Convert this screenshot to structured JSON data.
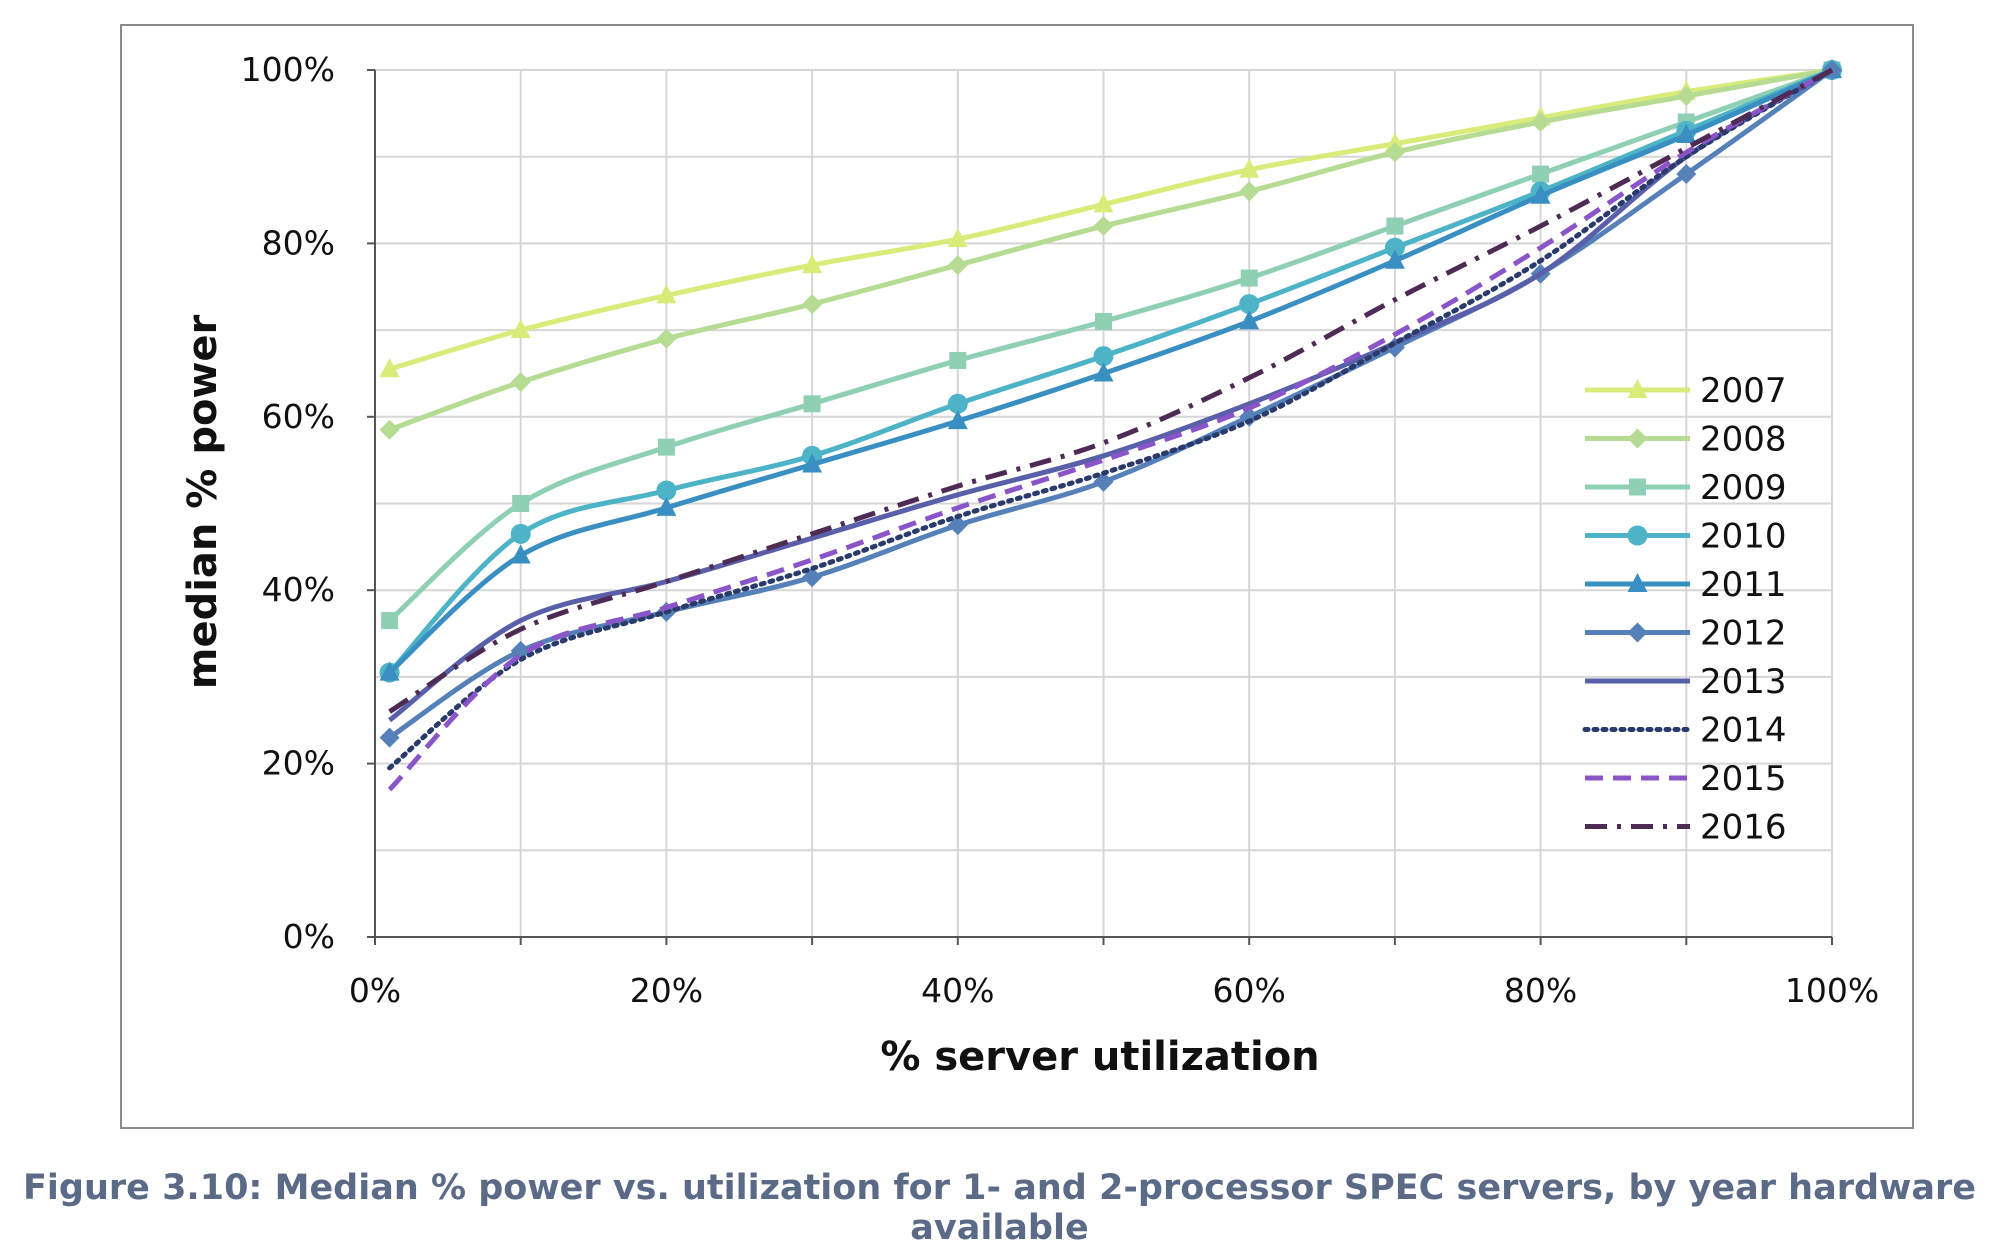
{
  "chart_data": {
    "type": "line",
    "xlabel": "% server utilization",
    "ylabel": "median % power",
    "x": [
      1,
      10,
      20,
      30,
      40,
      50,
      60,
      70,
      80,
      90,
      100
    ],
    "xlim": [
      0,
      100
    ],
    "ylim": [
      0,
      100
    ],
    "xticks": [
      0,
      20,
      40,
      60,
      80,
      100
    ],
    "xtick_labels": [
      "0%",
      "20%",
      "40%",
      "60%",
      "80%",
      "100%"
    ],
    "yticks": [
      0,
      20,
      40,
      60,
      80,
      100
    ],
    "ytick_labels": [
      "0%",
      "20%",
      "40%",
      "60%",
      "80%",
      "100%"
    ],
    "grid": true,
    "legend_position": "right",
    "series": [
      {
        "name": "2007",
        "color": "#d9ec7a",
        "marker": "triangle",
        "dash": "solid",
        "values": [
          65.5,
          70,
          74,
          77.5,
          80.5,
          84.5,
          88.5,
          91.5,
          94.5,
          97.5,
          100
        ]
      },
      {
        "name": "2008",
        "color": "#b6dc93",
        "marker": "diamond",
        "dash": "solid",
        "values": [
          58.5,
          64,
          69,
          73,
          77.5,
          82,
          86,
          90.5,
          94,
          97,
          100
        ]
      },
      {
        "name": "2009",
        "color": "#8fd0b5",
        "marker": "square",
        "dash": "solid",
        "values": [
          36.5,
          50,
          56.5,
          61.5,
          66.5,
          71,
          76,
          82,
          88,
          94,
          100
        ]
      },
      {
        "name": "2010",
        "color": "#4db3c7",
        "marker": "circle",
        "dash": "solid",
        "values": [
          30.5,
          46.5,
          51.5,
          55.5,
          61.5,
          67,
          73,
          79.5,
          86,
          93,
          100
        ]
      },
      {
        "name": "2011",
        "color": "#3a8fc2",
        "marker": "triangle",
        "dash": "solid",
        "values": [
          30.5,
          44,
          49.5,
          54.5,
          59.5,
          65,
          71,
          78,
          85.5,
          92.5,
          100
        ]
      },
      {
        "name": "2012",
        "color": "#5580b8",
        "marker": "diamond",
        "dash": "solid",
        "values": [
          23,
          33,
          37.5,
          41.5,
          47.5,
          52.5,
          60,
          68,
          76.5,
          88,
          100
        ]
      },
      {
        "name": "2013",
        "color": "#5a5faa",
        "marker": "none",
        "dash": "solid",
        "values": [
          25,
          36.5,
          41,
          46,
          51,
          55.5,
          61.5,
          68.5,
          76.5,
          90,
          100
        ]
      },
      {
        "name": "2014",
        "color": "#2a3a6b",
        "marker": "none",
        "dash": "dotted",
        "values": [
          19.5,
          32,
          37.5,
          42.5,
          48.5,
          53.5,
          59.5,
          68.5,
          78,
          90,
          100
        ]
      },
      {
        "name": "2015",
        "color": "#8a55c8",
        "marker": "none",
        "dash": "dashed",
        "values": [
          17,
          32.5,
          38,
          43.5,
          49.5,
          55,
          61,
          69.5,
          79.5,
          90.5,
          100
        ]
      },
      {
        "name": "2016",
        "color": "#4e2b55",
        "marker": "none",
        "dash": "dashdot",
        "values": [
          26,
          35.5,
          41,
          46.5,
          52,
          57,
          64.5,
          73.5,
          82,
          91,
          100
        ]
      }
    ]
  },
  "caption": "Figure 3.10: Median % power vs. utilization for 1- and 2-processor SPEC servers, by year hardware available"
}
